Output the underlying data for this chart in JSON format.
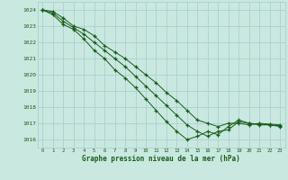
{
  "title": "Graphe pression niveau de la mer (hPa)",
  "background_color": "#c8e8e0",
  "grid_color": "#a8cccc",
  "line_color": "#1a5c1a",
  "xlim": [
    -0.5,
    23.5
  ],
  "ylim": [
    1015.5,
    1024.5
  ],
  "yticks": [
    1016,
    1017,
    1018,
    1019,
    1020,
    1021,
    1022,
    1023,
    1024
  ],
  "x_ticks": [
    0,
    1,
    2,
    3,
    4,
    5,
    6,
    7,
    8,
    9,
    10,
    11,
    12,
    13,
    14,
    15,
    16,
    17,
    18,
    19,
    20,
    21,
    22,
    23
  ],
  "series": [
    [
      1024.0,
      1023.9,
      1023.5,
      1023.0,
      1022.8,
      1022.4,
      1021.8,
      1021.4,
      1021.0,
      1020.5,
      1020.0,
      1019.5,
      1018.9,
      1018.4,
      1017.8,
      1017.2,
      1017.0,
      1016.8,
      1017.0,
      1017.0,
      1016.9,
      1017.0,
      1016.95,
      1016.9
    ],
    [
      1024.0,
      1023.8,
      1023.3,
      1022.9,
      1022.5,
      1022.0,
      1021.5,
      1021.0,
      1020.5,
      1019.9,
      1019.3,
      1018.7,
      1018.1,
      1017.5,
      1016.9,
      1016.5,
      1016.2,
      1016.5,
      1016.6,
      1017.1,
      1017.0,
      1016.95,
      1016.9,
      1016.85
    ],
    [
      1024.0,
      1023.7,
      1023.1,
      1022.8,
      1022.2,
      1021.5,
      1021.0,
      1020.3,
      1019.8,
      1019.2,
      1018.5,
      1017.8,
      1017.1,
      1016.5,
      1016.0,
      1016.2,
      1016.5,
      1016.3,
      1016.8,
      1017.2,
      1017.0,
      1016.9,
      1016.9,
      1016.8
    ]
  ]
}
